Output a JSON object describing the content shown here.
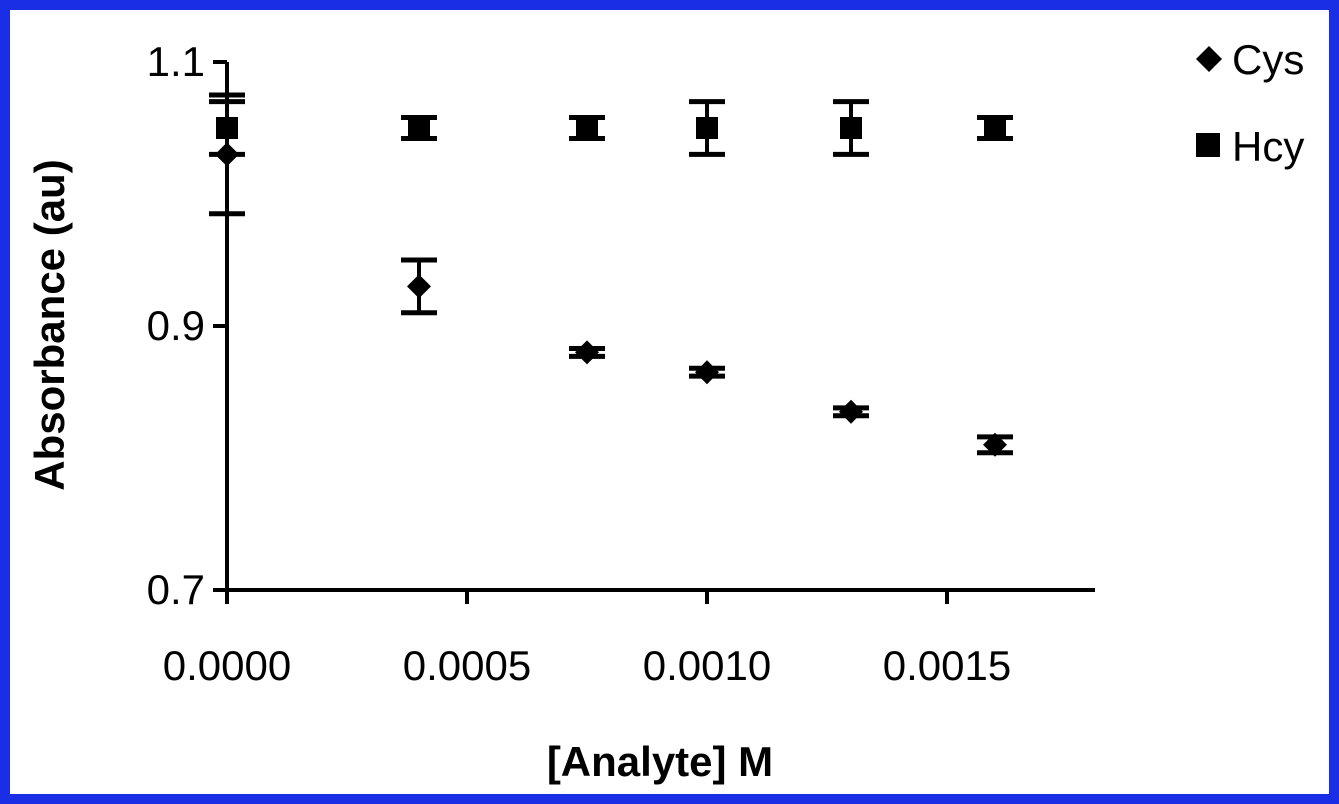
{
  "colors": {
    "border": "#1a2ee6",
    "marks": "#000000",
    "background": "#ffffff"
  },
  "chart_data": {
    "type": "scatter",
    "title": "",
    "xlabel": "[Analyte] M",
    "ylabel": "Absorbance (au)",
    "xlim": [
      0,
      0.0018
    ],
    "ylim": [
      0.7,
      1.1
    ],
    "x_ticks": [
      "0.0000",
      "0.0005",
      "0.0010",
      "0.0015"
    ],
    "x_tick_values": [
      0,
      0.0005,
      0.001,
      0.0015
    ],
    "y_ticks": [
      "0.7",
      "0.9",
      "1.1"
    ],
    "y_tick_values": [
      0.7,
      0.9,
      1.1
    ],
    "grid": false,
    "legend_position": "top-right",
    "series": [
      {
        "name": "Cys",
        "marker": "diamond",
        "points": [
          {
            "x": 0,
            "y": 1.03,
            "err": 0.045
          },
          {
            "x": 0.0004,
            "y": 0.93,
            "err": 0.02
          },
          {
            "x": 0.00075,
            "y": 0.88,
            "err": 0.003
          },
          {
            "x": 0.001,
            "y": 0.865,
            "err": 0.003
          },
          {
            "x": 0.0013,
            "y": 0.835,
            "err": 0.003
          },
          {
            "x": 0.0016,
            "y": 0.81,
            "err": 0.006
          }
        ]
      },
      {
        "name": "Hcy",
        "marker": "square",
        "points": [
          {
            "x": 0,
            "y": 1.05,
            "err": 0.02
          },
          {
            "x": 0.0004,
            "y": 1.05,
            "err": 0.008
          },
          {
            "x": 0.00075,
            "y": 1.05,
            "err": 0.008
          },
          {
            "x": 0.001,
            "y": 1.05,
            "err": 0.02
          },
          {
            "x": 0.0013,
            "y": 1.05,
            "err": 0.02
          },
          {
            "x": 0.0016,
            "y": 1.05,
            "err": 0.008
          }
        ]
      }
    ]
  }
}
